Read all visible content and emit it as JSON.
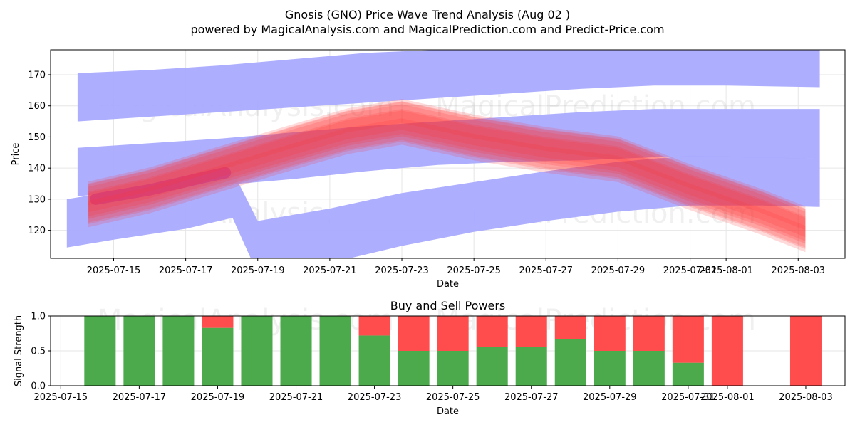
{
  "header": {
    "title": "Gnosis (GNO) Price Wave Trend Analysis (Aug 02 )",
    "subtitle": "powered by MagicalAnalysis.com and MagicalPrediction.com and Predict-Price.com"
  },
  "watermarks": [
    "MagicalAnalysis.com",
    "MagicalPrediction.com",
    "MagicalAnalysis.com",
    "MagicalPrediction.com",
    "MagicalAnalysis.com",
    "MagicalPrediction.com"
  ],
  "colors": {
    "blue_band": "#aaaaff",
    "red_band": "#ff3333",
    "buy": "#4caa4c",
    "sell": "#ff4c4c",
    "purple_line": "#7b2fff"
  },
  "chart_data": [
    {
      "type": "area",
      "title": "",
      "xlabel": "Date",
      "ylabel": "Price",
      "ylim": [
        111,
        178
      ],
      "xlim": [
        "2025-07-13",
        "2025-08-04"
      ],
      "x_ticks": [
        "2025-07-15",
        "2025-07-17",
        "2025-07-19",
        "2025-07-21",
        "2025-07-23",
        "2025-07-25",
        "2025-07-27",
        "2025-07-29",
        "2025-07-31",
        "2025-08-01",
        "2025-08-03"
      ],
      "y_ticks": [
        120,
        130,
        140,
        150,
        160,
        170
      ],
      "grid": true,
      "blue_bands": [
        {
          "x": [
            "2025-07-14",
            "2025-07-16",
            "2025-07-18",
            "2025-07-20",
            "2025-07-22",
            "2025-07-24",
            "2025-07-26",
            "2025-07-28",
            "2025-07-30",
            "2025-08-01",
            "2025-08-03.6"
          ],
          "upper": [
            170.5,
            171.5,
            173,
            175,
            177,
            178,
            179,
            179,
            178.5,
            178,
            178
          ],
          "lower": [
            155,
            156.5,
            158,
            159.5,
            161,
            162.5,
            164,
            165.5,
            166.5,
            166.5,
            166
          ]
        },
        {
          "x": [
            "2025-07-14",
            "2025-07-16",
            "2025-07-18",
            "2025-07-20",
            "2025-07-22",
            "2025-07-24",
            "2025-07-26",
            "2025-07-28",
            "2025-07-30",
            "2025-08-01",
            "2025-08-03.6"
          ],
          "upper": [
            146.5,
            148,
            149.5,
            151.5,
            153.5,
            155,
            156.5,
            158,
            159,
            159,
            159
          ],
          "lower": [
            131,
            132.5,
            134.5,
            136.5,
            139,
            141,
            142,
            142.5,
            143.5,
            143.5,
            143
          ]
        },
        {
          "x": [
            "2025-07-13.7",
            "2025-07-15",
            "2025-07-17",
            "2025-07-18.3",
            "2025-07-19",
            "2025-07-21",
            "2025-07-23",
            "2025-07-25",
            "2025-07-27",
            "2025-07-29",
            "2025-07-31",
            "2025-08-02",
            "2025-08-03.6"
          ],
          "upper": [
            130,
            132.5,
            136.5,
            139,
            123,
            127,
            132,
            135.5,
            139,
            142,
            144,
            143.5,
            143
          ],
          "lower": [
            114.5,
            117,
            120.5,
            124,
            106,
            109.5,
            115,
            119.5,
            123,
            126,
            128,
            128,
            127.5
          ]
        }
      ],
      "red_band": {
        "x": [
          "2025-07-14.3",
          "2025-07-16",
          "2025-07-18",
          "2025-07-20",
          "2025-07-21.5",
          "2025-07-23",
          "2025-07-25",
          "2025-07-27",
          "2025-07-29",
          "2025-07-31",
          "2025-08-02",
          "2025-08-03.2"
        ],
        "center": [
          128.5,
          133,
          140,
          147,
          152,
          155,
          150,
          146,
          143,
          134,
          126,
          120.5
        ]
      },
      "purple_segment": {
        "x": [
          "2025-07-14.5",
          "2025-07-16",
          "2025-07-17.5",
          "2025-07-18.1"
        ],
        "y": [
          130,
          133,
          137,
          138.5
        ]
      }
    },
    {
      "type": "bar",
      "title": "Buy and Sell Powers",
      "xlabel": "Date",
      "ylabel": "Signal Strength",
      "ylim": [
        0,
        1.0
      ],
      "y_ticks": [
        0.0,
        0.5,
        1.0
      ],
      "x_ticks": [
        "2025-07-15",
        "2025-07-17",
        "2025-07-19",
        "2025-07-21",
        "2025-07-23",
        "2025-07-25",
        "2025-07-27",
        "2025-07-29",
        "2025-07-31",
        "2025-08-01",
        "2025-08-03"
      ],
      "dates": [
        "2025-07-16",
        "2025-07-17",
        "2025-07-18",
        "2025-07-19",
        "2025-07-20",
        "2025-07-21",
        "2025-07-22",
        "2025-07-23",
        "2025-07-24",
        "2025-07-25",
        "2025-07-26",
        "2025-07-27",
        "2025-07-28",
        "2025-07-29",
        "2025-07-30",
        "2025-07-31",
        "2025-08-01",
        "2025-08-03"
      ],
      "series": [
        {
          "name": "Buy",
          "values": [
            1.0,
            1.0,
            1.0,
            0.83,
            1.0,
            1.0,
            1.0,
            0.72,
            0.5,
            0.5,
            0.56,
            0.56,
            0.67,
            0.5,
            0.5,
            0.33,
            0.0,
            0.0
          ]
        },
        {
          "name": "Sell",
          "values": [
            0.0,
            0.0,
            0.0,
            0.17,
            0.0,
            0.0,
            0.0,
            0.28,
            0.5,
            0.5,
            0.44,
            0.44,
            0.33,
            0.5,
            0.5,
            0.67,
            1.0,
            1.0
          ]
        }
      ]
    }
  ]
}
